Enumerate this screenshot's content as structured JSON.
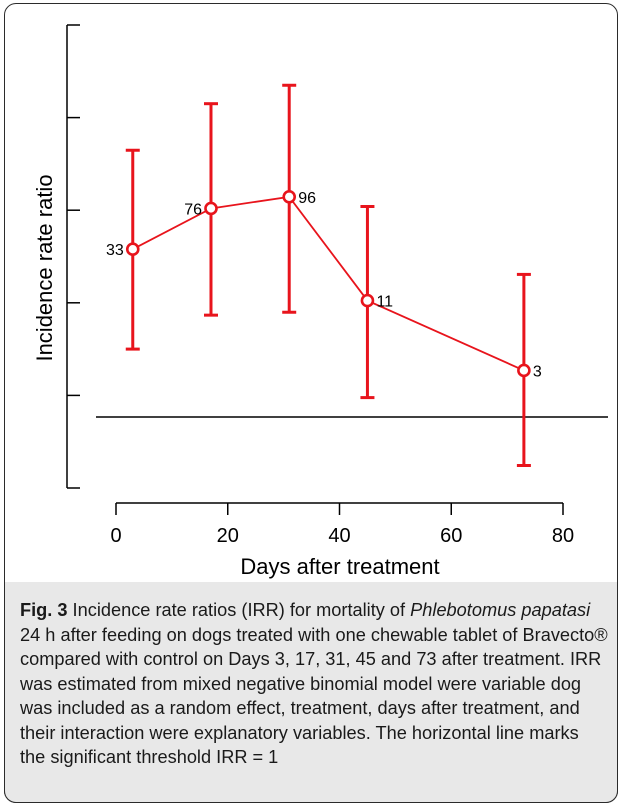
{
  "chart_data": {
    "type": "line",
    "xlabel": "Days after treatment",
    "ylabel": "Incidence rate ratio",
    "xlim": [
      -3,
      80
    ],
    "x_ticks": [
      0,
      20,
      40,
      60,
      80
    ],
    "y_ticks_labeled": false,
    "reference_line": {
      "y": 1,
      "label": "IRR = 1"
    },
    "series": [
      {
        "color": "#e8141c",
        "x": [
          3,
          17,
          31,
          45,
          73
        ],
        "y": [
          2.73,
          3.15,
          3.27,
          2.2,
          1.48
        ],
        "lower": [
          1.7,
          2.05,
          2.08,
          1.2,
          0.5
        ],
        "upper": [
          3.75,
          4.23,
          4.42,
          3.17,
          2.47
        ],
        "labels": [
          "33",
          "76",
          "96",
          "11",
          "3"
        ]
      }
    ]
  },
  "caption": {
    "fig_label": "Fig. 3",
    "part1": " Incidence rate ratios (IRR) for mortality of ",
    "species": "Phlebotomus papatasi",
    "part2": " 24 h after feeding on dogs treated with one chewable tablet of Bravecto® compared with control on Days 3, 17, 31, 45 and 73 after treatment. IRR was estimated from mixed negative binomial model were variable dog was included as a random effect, treatment, days after treatment, and their interaction were explanatory variables. The horizontal line marks the significant threshold IRR = 1"
  }
}
